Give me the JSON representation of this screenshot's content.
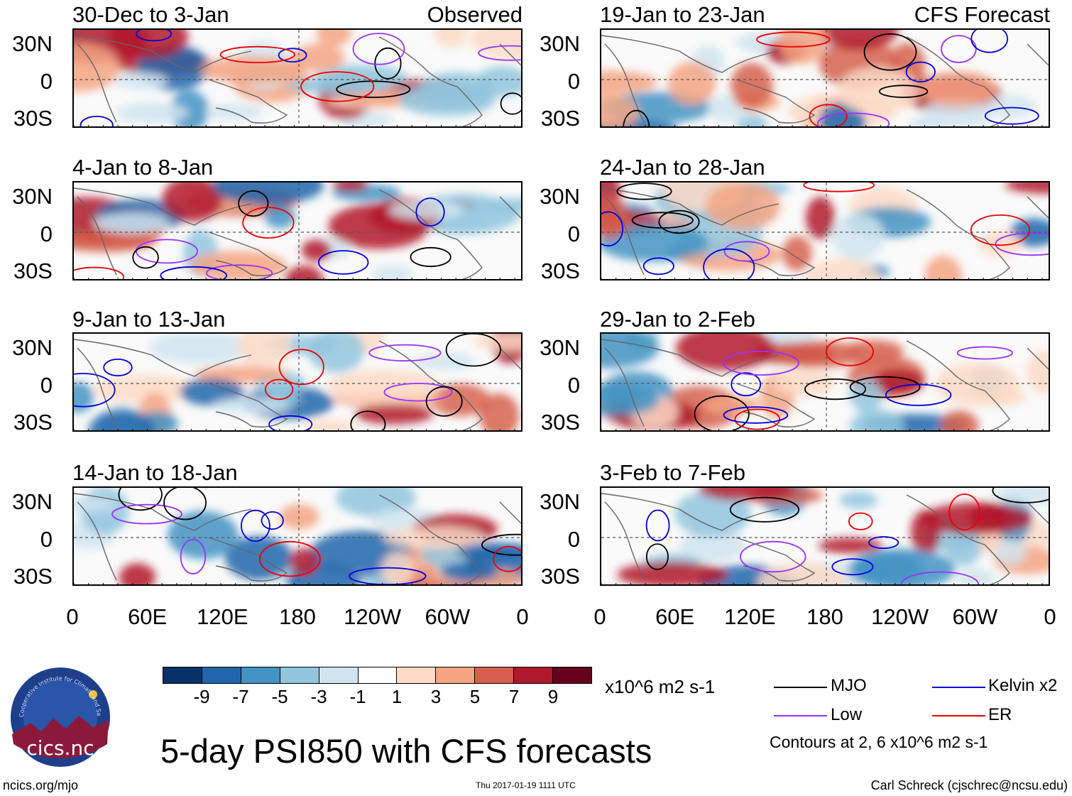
{
  "panels": [
    {
      "title": "30-Dec to 3-Jan",
      "tag": "Observed"
    },
    {
      "title": "4-Jan to 8-Jan",
      "tag": ""
    },
    {
      "title": "9-Jan to 13-Jan",
      "tag": ""
    },
    {
      "title": "14-Jan to 18-Jan",
      "tag": ""
    },
    {
      "title": "19-Jan to 23-Jan",
      "tag": "CFS Forecast"
    },
    {
      "title": "24-Jan to 28-Jan",
      "tag": ""
    },
    {
      "title": "29-Jan to 2-Feb",
      "tag": ""
    },
    {
      "title": "3-Feb to 7-Feb",
      "tag": ""
    }
  ],
  "lat_labels": [
    "30N",
    "0",
    "30S"
  ],
  "lon_labels": [
    "0",
    "60E",
    "120E",
    "180",
    "120W",
    "60W",
    "0"
  ],
  "colorbar": {
    "colors": [
      "#08306b",
      "#2166ac",
      "#4393c3",
      "#92c5de",
      "#d1e5f0",
      "#ffffff",
      "#fddbc7",
      "#f4a582",
      "#d6604d",
      "#b2182b",
      "#67001f"
    ],
    "labels": [
      "-9",
      "-7",
      "-5",
      "-3",
      "-1",
      "1",
      "3",
      "5",
      "7",
      "9"
    ],
    "units": "x10^6 m2 s-1"
  },
  "legend": [
    {
      "name": "MJO",
      "color": "#000000"
    },
    {
      "name": "Kelvin x2",
      "color": "#0000dd"
    },
    {
      "name": "Low",
      "color": "#9b30ff"
    },
    {
      "name": "ER",
      "color": "#ee0000"
    }
  ],
  "contour_note": "Contours at 2, 6 x10^6 m2 s-1",
  "main_title": "5-day PSI850 with CFS forecasts",
  "logo_text": "cics.nc",
  "logo_ring_text": "Cooperative Institute for Climate and Satellites",
  "footer": {
    "left": "ncics.org/mjo",
    "center": "Thu 2017-01-19 1111 UTC",
    "right": "Carl Schreck (cjschrec@ncsu.edu)"
  }
}
